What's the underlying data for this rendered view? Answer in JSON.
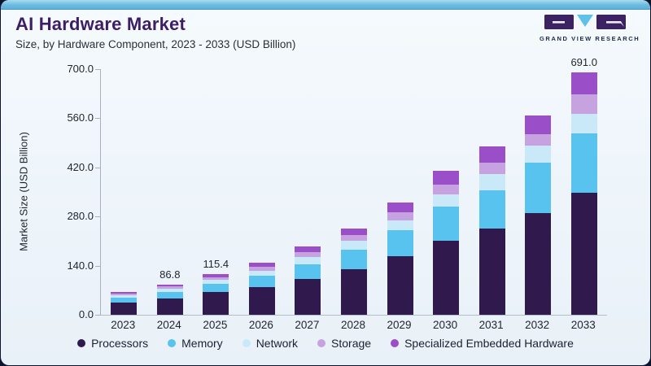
{
  "header": {
    "title": "AI Hardware Market",
    "subtitle": "Size, by Hardware Component, 2023 - 2033 (USD Billion)",
    "brand": {
      "name": "GRAND VIEW RESEARCH"
    }
  },
  "chart_data": {
    "type": "bar",
    "stacked": true,
    "title": "AI Hardware Market",
    "ylabel": "Market Size (USD Billion)",
    "ylim": [
      0,
      700
    ],
    "yticks": [
      "0.0",
      "140.0",
      "280.0",
      "420.0",
      "560.0",
      "700.0"
    ],
    "grid": false,
    "legend_position": "bottom",
    "categories": [
      "2023",
      "2024",
      "2025",
      "2026",
      "2027",
      "2028",
      "2029",
      "2030",
      "2031",
      "2032",
      "2033"
    ],
    "series": [
      {
        "name": "Processors",
        "color": "#30194d",
        "values": [
          34.8,
          46.3,
          64.6,
          78.6,
          101.6,
          130.0,
          167.0,
          211.0,
          246.0,
          289.0,
          347.4
        ]
      },
      {
        "name": "Memory",
        "color": "#58c3ee",
        "values": [
          13.8,
          18.6,
          23.1,
          32.4,
          41.6,
          55.7,
          74.2,
          96.8,
          108.0,
          143.6,
          169.1
        ]
      },
      {
        "name": "Network",
        "color": "#c9e9f8",
        "values": [
          6.6,
          9.2,
          11.5,
          13.9,
          20.8,
          25.5,
          27.8,
          34.9,
          47.3,
          50.2,
          55.0
        ]
      },
      {
        "name": "Storage",
        "color": "#c6a3e0",
        "values": [
          5.1,
          6.9,
          6.9,
          11.6,
          13.9,
          16.2,
          23.2,
          27.1,
          31.2,
          31.2,
          56.6
        ]
      },
      {
        "name": "Specialized Embedded Hardware",
        "color": "#9a4fc9",
        "values": [
          5.0,
          5.8,
          9.3,
          11.6,
          16.1,
          18.6,
          27.8,
          40.2,
          48.0,
          54.0,
          62.9
        ]
      }
    ],
    "bar_labels": {
      "2024": "86.8",
      "2025": "115.4",
      "2033": "691.0"
    },
    "colors": {
      "card_background": "#edf4fa",
      "top_accent": "#6cbbe0",
      "title_text": "#3d1e66",
      "axis_text": "#22262e"
    }
  }
}
